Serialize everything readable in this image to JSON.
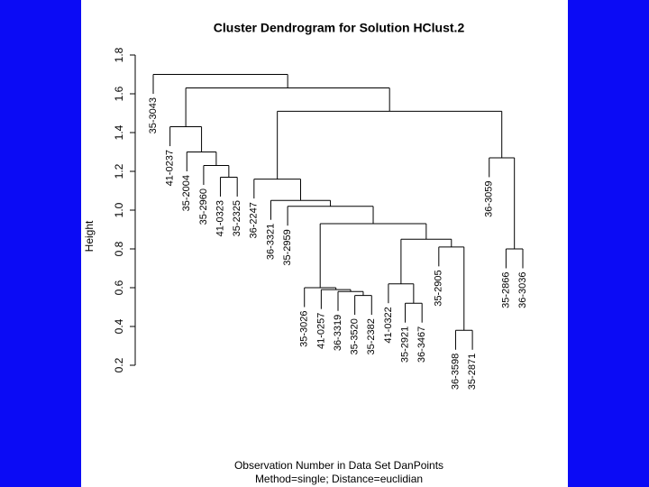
{
  "chart_data": {
    "type": "dendrogram",
    "title": "Cluster Dendrogram for Solution HClust.2",
    "xlabel": "Observation Number in Data Set DanPoints",
    "subtitle": "Method=single; Distance=euclidian",
    "ylabel": "Height",
    "ylim": [
      0.2,
      1.8
    ],
    "yticks": [
      0.2,
      0.4,
      0.6,
      0.8,
      {
        "value": 1,
        "label": "1.0"
      },
      1.2,
      1.4,
      1.6,
      1.8
    ],
    "color": "#000000",
    "tree": {
      "height": 1.7,
      "children": [
        {
          "label": "35-3043"
        },
        {
          "height": 1.63,
          "children": [
            {
              "height": 1.43,
              "children": [
                {
                  "label": "41-0237"
                },
                {
                  "height": 1.3,
                  "children": [
                    {
                      "label": "35-2004"
                    },
                    {
                      "height": 1.23,
                      "children": [
                        {
                          "label": "35-2960"
                        },
                        {
                          "height": 1.17,
                          "children": [
                            {
                              "label": "41-0323"
                            },
                            {
                              "label": "35-2325"
                            }
                          ]
                        }
                      ]
                    }
                  ]
                }
              ]
            },
            {
              "height": 1.51,
              "children": [
                {
                  "height": 1.16,
                  "children": [
                    {
                      "label": "36-2247"
                    },
                    {
                      "height": 1.05,
                      "children": [
                        {
                          "label": "36-3321"
                        },
                        {
                          "height": 1.02,
                          "children": [
                            {
                              "label": "35-2959"
                            },
                            {
                              "height": 0.93,
                              "children": [
                                {
                                  "height": 0.6,
                                  "children": [
                                    {
                                      "label": "35-3026"
                                    },
                                    {
                                      "height": 0.59,
                                      "children": [
                                        {
                                          "label": "41-0257"
                                        },
                                        {
                                          "height": 0.58,
                                          "children": [
                                            {
                                              "label": "36-3319"
                                            },
                                            {
                                              "height": 0.56,
                                              "children": [
                                                {
                                                  "label": "35-3520"
                                                },
                                                {
                                                  "label": "35-2382"
                                                }
                                              ]
                                            }
                                          ]
                                        }
                                      ]
                                    }
                                  ]
                                },
                                {
                                  "height": 0.85,
                                  "children": [
                                    {
                                      "height": 0.62,
                                      "children": [
                                        {
                                          "label": "41-0322"
                                        },
                                        {
                                          "height": 0.52,
                                          "children": [
                                            {
                                              "label": "35-2921"
                                            },
                                            {
                                              "label": "36-3467"
                                            }
                                          ]
                                        }
                                      ]
                                    },
                                    {
                                      "height": 0.81,
                                      "children": [
                                        {
                                          "label": "35-2905"
                                        },
                                        {
                                          "height": 0.38,
                                          "children": [
                                            {
                                              "label": "36-3598"
                                            },
                                            {
                                              "label": "35-2871"
                                            }
                                          ]
                                        }
                                      ]
                                    }
                                  ]
                                }
                              ]
                            }
                          ]
                        }
                      ]
                    }
                  ]
                },
                {
                  "height": 1.27,
                  "children": [
                    {
                      "label": "36-3059"
                    },
                    {
                      "height": 0.8,
                      "children": [
                        {
                          "label": "35-2866"
                        },
                        {
                          "label": "36-3036"
                        }
                      ]
                    }
                  ]
                }
              ]
            }
          ]
        }
      ]
    }
  }
}
